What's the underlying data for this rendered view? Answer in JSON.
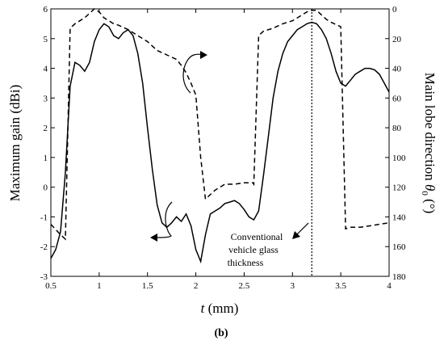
{
  "chart_data": {
    "type": "line",
    "x_axis": {
      "label_symbol": "t",
      "label_unit": " (mm)",
      "range": [
        0.5,
        4
      ],
      "ticks": [
        "0.5",
        "1",
        "1.5",
        "2",
        "2.5",
        "3",
        "3.5",
        "4"
      ]
    },
    "y_left": {
      "label": "Maximum gain (dBi)",
      "range": [
        -3,
        6
      ],
      "ticks": [
        "-3",
        "-2",
        "-1",
        "0",
        "1",
        "2",
        "3",
        "4",
        "5",
        "6"
      ]
    },
    "y_right": {
      "label_prefix": "Main lobe direction ",
      "label_symbol": "θ",
      "label_subscript": "0",
      "label_unit": " (°)",
      "range": [
        0,
        180
      ],
      "inverted": true,
      "ticks": [
        "0",
        "20",
        "40",
        "60",
        "80",
        "100",
        "120",
        "140",
        "160",
        "180"
      ]
    },
    "series": [
      {
        "style": "solid",
        "axis": "left",
        "x": [
          0.5,
          0.55,
          0.6,
          0.65,
          0.7,
          0.75,
          0.8,
          0.85,
          0.9,
          0.95,
          1.0,
          1.05,
          1.1,
          1.15,
          1.2,
          1.25,
          1.3,
          1.35,
          1.4,
          1.45,
          1.5,
          1.55,
          1.6,
          1.65,
          1.7,
          1.75,
          1.8,
          1.85,
          1.9,
          1.95,
          2.0,
          2.05,
          2.1,
          2.15,
          2.2,
          2.25,
          2.3,
          2.35,
          2.4,
          2.45,
          2.5,
          2.55,
          2.6,
          2.65,
          2.7,
          2.75,
          2.8,
          2.85,
          2.9,
          2.95,
          3.0,
          3.05,
          3.1,
          3.15,
          3.2,
          3.25,
          3.3,
          3.35,
          3.4,
          3.45,
          3.5,
          3.55,
          3.6,
          3.65,
          3.7,
          3.75,
          3.8,
          3.85,
          3.9,
          3.95,
          4.0
        ],
        "y": [
          -2.4,
          -2.1,
          -1.5,
          0.5,
          3.4,
          4.2,
          4.1,
          3.9,
          4.2,
          4.9,
          5.3,
          5.5,
          5.4,
          5.1,
          5.0,
          5.2,
          5.3,
          5.1,
          4.5,
          3.5,
          2.0,
          0.6,
          -0.6,
          -1.2,
          -1.35,
          -1.2,
          -1.0,
          -1.15,
          -0.9,
          -1.3,
          -2.1,
          -2.5,
          -1.6,
          -0.9,
          -0.8,
          -0.7,
          -0.55,
          -0.5,
          -0.45,
          -0.55,
          -0.75,
          -1.0,
          -1.1,
          -0.8,
          0.4,
          1.7,
          3.0,
          3.9,
          4.5,
          4.9,
          5.1,
          5.3,
          5.4,
          5.5,
          5.55,
          5.5,
          5.3,
          5.0,
          4.5,
          3.9,
          3.5,
          3.4,
          3.6,
          3.8,
          3.9,
          4.0,
          4.0,
          3.95,
          3.8,
          3.5,
          3.2
        ]
      },
      {
        "style": "dashed",
        "axis": "right",
        "x": [
          0.5,
          0.6,
          0.65,
          0.7,
          0.75,
          0.8,
          0.85,
          0.9,
          0.95,
          1.0,
          1.05,
          1.1,
          1.15,
          1.2,
          1.3,
          1.4,
          1.5,
          1.6,
          1.7,
          1.8,
          1.85,
          1.9,
          1.95,
          2.0,
          2.05,
          2.1,
          2.2,
          2.3,
          2.4,
          2.5,
          2.59,
          2.6,
          2.65,
          2.7,
          2.8,
          2.9,
          3.0,
          3.1,
          3.15,
          3.2,
          3.25,
          3.3,
          3.35,
          3.4,
          3.5,
          3.55,
          3.6,
          3.7,
          3.8,
          3.9,
          4.0
        ],
        "y": [
          145,
          152,
          155,
          13,
          10,
          8,
          6,
          3,
          0,
          2,
          6,
          8,
          10,
          11,
          14,
          18,
          22,
          28,
          31,
          34,
          38,
          43,
          50,
          58,
          100,
          128,
          122,
          118,
          118,
          117,
          117,
          118,
          18,
          15,
          13,
          10,
          8,
          4,
          2,
          1,
          1,
          4,
          7,
          9,
          12,
          148,
          147,
          147,
          146,
          145,
          144
        ]
      }
    ],
    "reference_line": {
      "x": 3.2,
      "style": "dotted"
    },
    "annotation": {
      "lines": [
        "Conventional",
        "vehicle glass",
        "thickness"
      ]
    },
    "caption": "(b)"
  }
}
